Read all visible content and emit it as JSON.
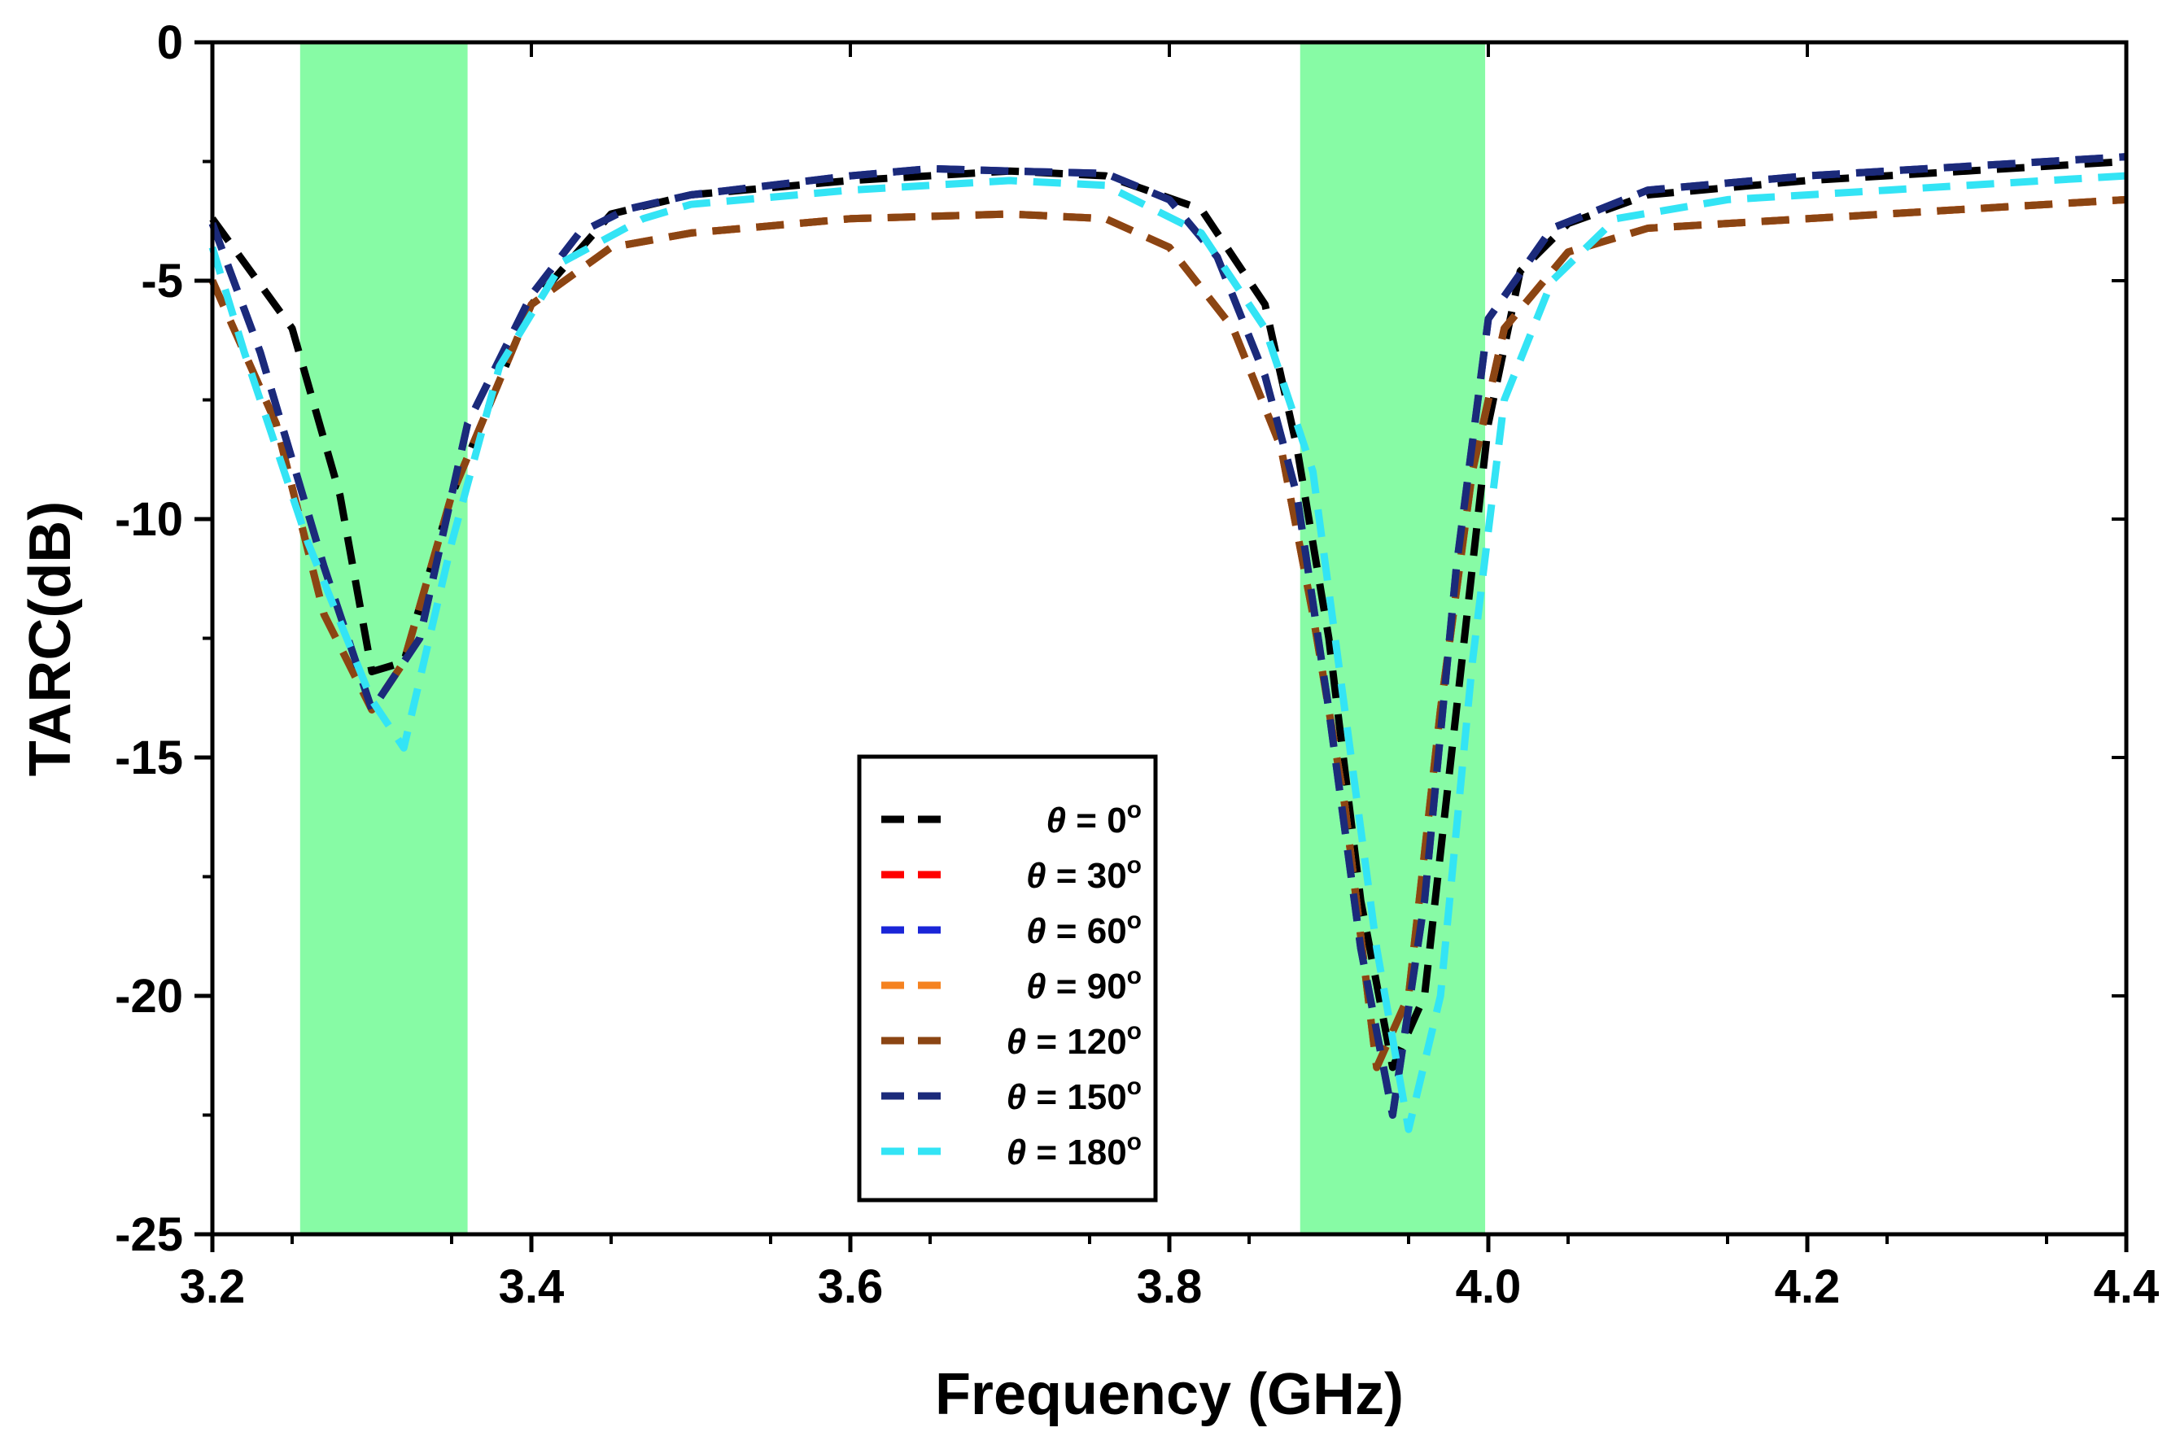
{
  "chart_data": {
    "type": "line",
    "title": "",
    "xlabel": "Frequency (GHz)",
    "ylabel": "TARC(dB)",
    "xlim": [
      3.2,
      4.4
    ],
    "ylim": [
      -25,
      0
    ],
    "xticks": [
      "3.2",
      "3.4",
      "3.6",
      "3.8",
      "4.0",
      "4.2",
      "4.4"
    ],
    "yticks": [
      "0",
      "-5",
      "-10",
      "-15",
      "-20",
      "-25"
    ],
    "highlight_bands": [
      {
        "x0": 3.255,
        "x1": 3.36,
        "color": "#87FBA5"
      },
      {
        "x0": 3.882,
        "x1": 3.998,
        "color": "#87FBA5"
      }
    ],
    "legend_position": "center-bottom",
    "legend_prefix": "θ = ",
    "legend_suffix": "o",
    "series": [
      {
        "name": "0",
        "color": "#000000",
        "x": [
          3.2,
          3.25,
          3.28,
          3.3,
          3.32,
          3.35,
          3.4,
          3.45,
          3.5,
          3.6,
          3.7,
          3.76,
          3.82,
          3.86,
          3.88,
          3.9,
          3.92,
          3.94,
          3.96,
          3.98,
          4.0,
          4.02,
          4.05,
          4.1,
          4.2,
          4.3,
          4.4
        ],
        "y": [
          -3.7,
          -6.0,
          -9.5,
          -13.2,
          -13.0,
          -9.5,
          -5.5,
          -3.6,
          -3.2,
          -2.9,
          -2.7,
          -2.8,
          -3.5,
          -5.5,
          -8.5,
          -12.5,
          -18.0,
          -21.5,
          -20.0,
          -14.0,
          -8.0,
          -4.8,
          -3.8,
          -3.2,
          -2.9,
          -2.7,
          -2.5
        ]
      },
      {
        "name": "30",
        "color": "#FF0000",
        "x": [
          3.2,
          3.24,
          3.27,
          3.3,
          3.32,
          3.35,
          3.4,
          3.45,
          3.5,
          3.6,
          3.7,
          3.76,
          3.8,
          3.84,
          3.87,
          3.89,
          3.91,
          3.93,
          3.95,
          3.97,
          3.99,
          4.01,
          4.05,
          4.1,
          4.2,
          4.3,
          4.4
        ],
        "y": [
          -5.0,
          -8.0,
          -12.0,
          -14.0,
          -13.0,
          -9.5,
          -5.5,
          -4.3,
          -4.0,
          -3.7,
          -3.6,
          -3.7,
          -4.3,
          -6.0,
          -8.5,
          -12.0,
          -16.0,
          -21.5,
          -20.0,
          -14.0,
          -9.0,
          -6.0,
          -4.4,
          -3.9,
          -3.7,
          -3.5,
          -3.3
        ]
      },
      {
        "name": "60",
        "color": "#1A25D8",
        "x": [
          3.2,
          3.23,
          3.27,
          3.3,
          3.33,
          3.36,
          3.4,
          3.43,
          3.46,
          3.5,
          3.6,
          3.65,
          3.7,
          3.76,
          3.8,
          3.83,
          3.86,
          3.88,
          3.9,
          3.92,
          3.94,
          3.96,
          3.98,
          4.0,
          4.04,
          4.1,
          4.2,
          4.3,
          4.4
        ],
        "y": [
          -3.8,
          -6.5,
          -11.0,
          -14.0,
          -12.5,
          -8.0,
          -5.3,
          -4.0,
          -3.5,
          -3.2,
          -2.8,
          -2.65,
          -2.7,
          -2.75,
          -3.3,
          -4.5,
          -7.0,
          -9.5,
          -14.0,
          -19.0,
          -22.5,
          -18.0,
          -11.0,
          -5.8,
          -3.9,
          -3.1,
          -2.8,
          -2.6,
          -2.4
        ]
      },
      {
        "name": "90",
        "color": "#F58220",
        "x": [
          3.2,
          3.24,
          3.27,
          3.3,
          3.32,
          3.35,
          3.4,
          3.45,
          3.5,
          3.6,
          3.7,
          3.76,
          3.8,
          3.84,
          3.87,
          3.89,
          3.91,
          3.93,
          3.95,
          3.97,
          3.99,
          4.01,
          4.05,
          4.1,
          4.2,
          4.3,
          4.4
        ],
        "y": [
          -5.0,
          -8.0,
          -12.0,
          -14.0,
          -13.0,
          -9.5,
          -5.5,
          -4.3,
          -4.0,
          -3.7,
          -3.6,
          -3.7,
          -4.3,
          -6.0,
          -8.5,
          -12.0,
          -16.0,
          -21.5,
          -20.0,
          -14.0,
          -9.0,
          -6.0,
          -4.4,
          -3.9,
          -3.7,
          -3.5,
          -3.3
        ]
      },
      {
        "name": "120",
        "color": "#8B4513",
        "x": [
          3.2,
          3.24,
          3.27,
          3.3,
          3.32,
          3.35,
          3.4,
          3.45,
          3.5,
          3.6,
          3.7,
          3.76,
          3.8,
          3.84,
          3.87,
          3.89,
          3.91,
          3.93,
          3.95,
          3.97,
          3.99,
          4.01,
          4.05,
          4.1,
          4.2,
          4.3,
          4.4
        ],
        "y": [
          -5.0,
          -8.0,
          -12.0,
          -14.0,
          -13.0,
          -9.5,
          -5.5,
          -4.3,
          -4.0,
          -3.7,
          -3.6,
          -3.7,
          -4.3,
          -6.0,
          -8.5,
          -12.0,
          -16.0,
          -21.5,
          -20.0,
          -14.0,
          -9.0,
          -6.0,
          -4.4,
          -3.9,
          -3.7,
          -3.5,
          -3.3
        ]
      },
      {
        "name": "150",
        "color": "#1B2A7A",
        "x": [
          3.2,
          3.23,
          3.27,
          3.3,
          3.33,
          3.36,
          3.4,
          3.43,
          3.46,
          3.5,
          3.6,
          3.65,
          3.7,
          3.76,
          3.8,
          3.83,
          3.86,
          3.88,
          3.9,
          3.92,
          3.94,
          3.96,
          3.98,
          4.0,
          4.04,
          4.1,
          4.2,
          4.3,
          4.4
        ],
        "y": [
          -3.8,
          -6.5,
          -11.0,
          -14.0,
          -12.5,
          -8.0,
          -5.3,
          -4.0,
          -3.5,
          -3.2,
          -2.8,
          -2.65,
          -2.7,
          -2.75,
          -3.3,
          -4.5,
          -7.0,
          -9.5,
          -14.0,
          -19.0,
          -22.5,
          -18.0,
          -11.0,
          -5.8,
          -3.9,
          -3.1,
          -2.8,
          -2.6,
          -2.4
        ]
      },
      {
        "name": "180",
        "color": "#33E4F5",
        "x": [
          3.2,
          3.22,
          3.26,
          3.3,
          3.32,
          3.35,
          3.38,
          3.42,
          3.47,
          3.5,
          3.6,
          3.7,
          3.76,
          3.82,
          3.86,
          3.89,
          3.91,
          3.93,
          3.95,
          3.97,
          3.99,
          4.01,
          4.04,
          4.08,
          4.15,
          4.25,
          4.35,
          4.4
        ],
        "y": [
          -4.3,
          -6.5,
          -10.5,
          -13.8,
          -14.8,
          -10.5,
          -6.8,
          -4.6,
          -3.7,
          -3.4,
          -3.1,
          -2.9,
          -3.0,
          -4.0,
          -6.0,
          -9.0,
          -14.0,
          -19.0,
          -22.8,
          -20.0,
          -13.0,
          -7.5,
          -5.0,
          -3.7,
          -3.3,
          -3.1,
          -2.9,
          -2.8
        ]
      }
    ]
  }
}
